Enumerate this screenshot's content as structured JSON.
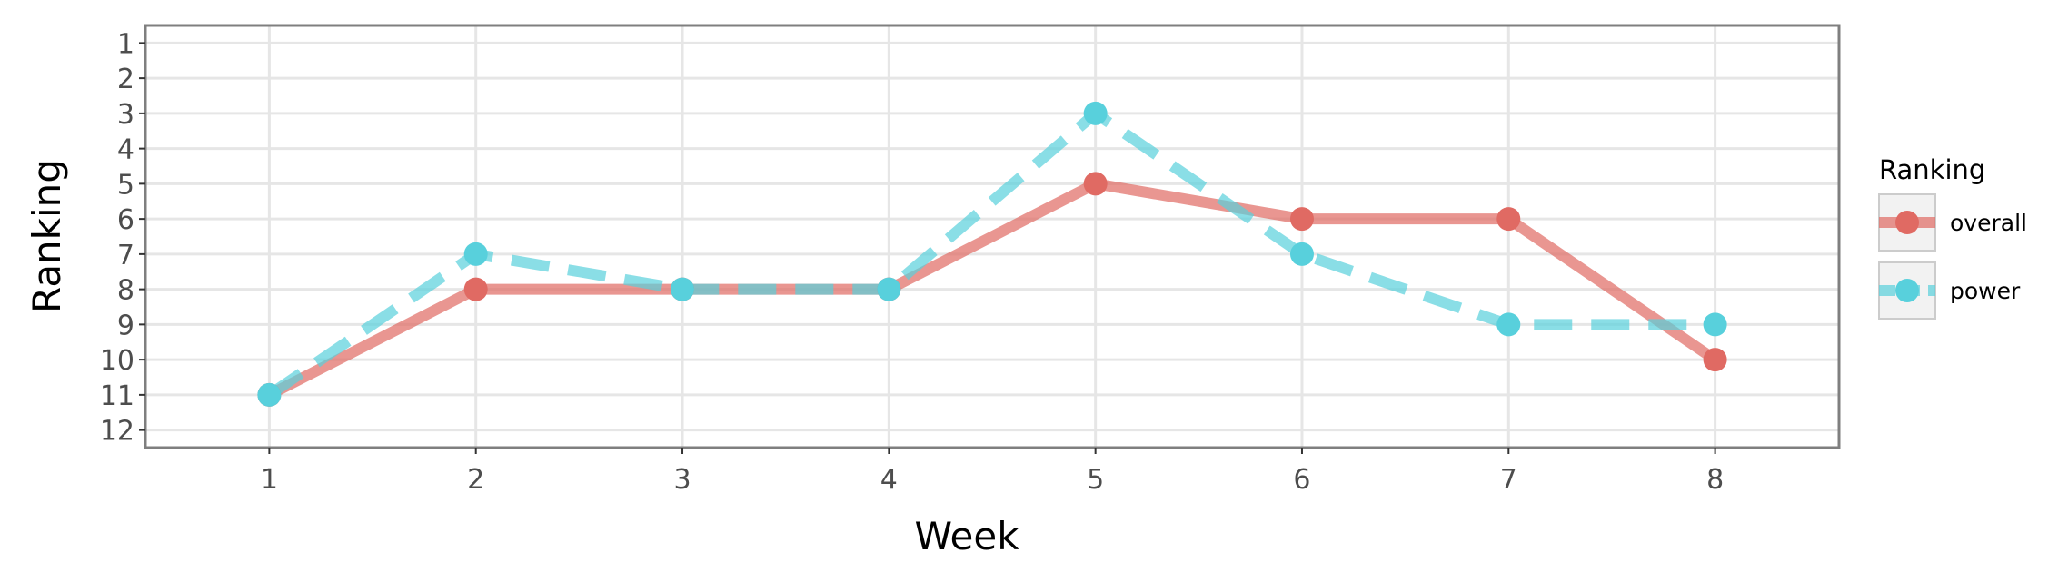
{
  "chart_data": {
    "type": "line",
    "title": "",
    "xlabel": "Week",
    "ylabel": "Ranking",
    "x": [
      1,
      2,
      3,
      4,
      5,
      6,
      7,
      8
    ],
    "x_ticks": [
      "1",
      "2",
      "3",
      "4",
      "5",
      "6",
      "7",
      "8"
    ],
    "y_ticks": [
      "1",
      "2",
      "3",
      "4",
      "5",
      "6",
      "7",
      "8",
      "9",
      "10",
      "11",
      "12"
    ],
    "xlim": [
      0.4,
      8.6
    ],
    "ylim": [
      12.5,
      0.5
    ],
    "y_reversed": true,
    "grid": true,
    "legend_title": "Ranking",
    "legend_position": "right",
    "series": [
      {
        "name": "overall",
        "values": [
          11,
          8,
          8,
          8,
          5,
          6,
          6,
          10
        ],
        "color": "#e06a63",
        "line_style": "solid"
      },
      {
        "name": "power",
        "values": [
          11,
          7,
          8,
          8,
          3,
          7,
          9,
          9
        ],
        "color": "#58d0dc",
        "line_style": "dashed"
      }
    ]
  }
}
